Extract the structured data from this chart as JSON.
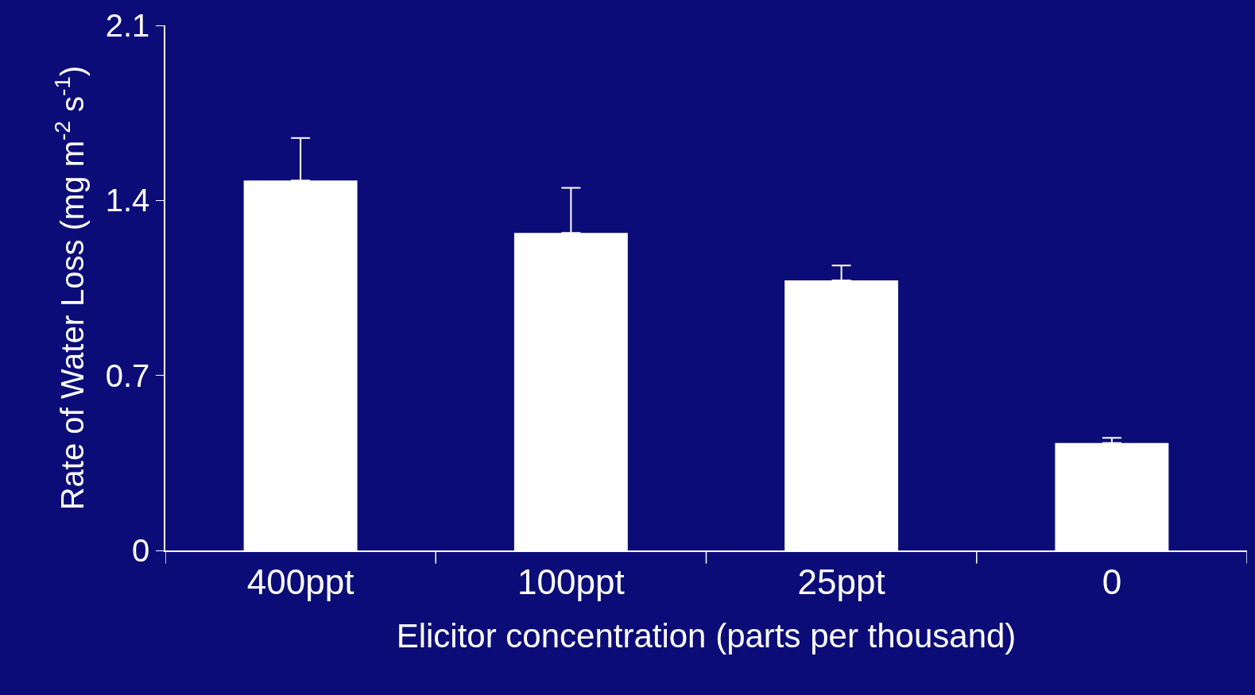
{
  "chart_data": {
    "type": "bar",
    "xlabel": "Elicitor concentration (parts per thousand)",
    "ylabel": "Rate of Water Loss (mg m$^{-2}$ s$^{-1}$)",
    "categories": [
      "400ppt",
      "100ppt",
      "25ppt",
      "0"
    ],
    "values": [
      1.48,
      1.27,
      1.08,
      0.43
    ],
    "errors": [
      [
        1.48,
        1.65
      ],
      [
        1.27,
        1.45
      ],
      [
        1.08,
        1.14
      ],
      [
        0.43,
        0.45
      ]
    ],
    "color": "#ffffff",
    "ylim": [
      0,
      2.1
    ],
    "yticks": [
      0,
      0.7,
      1.4,
      2.1
    ],
    "grid": false
  }
}
